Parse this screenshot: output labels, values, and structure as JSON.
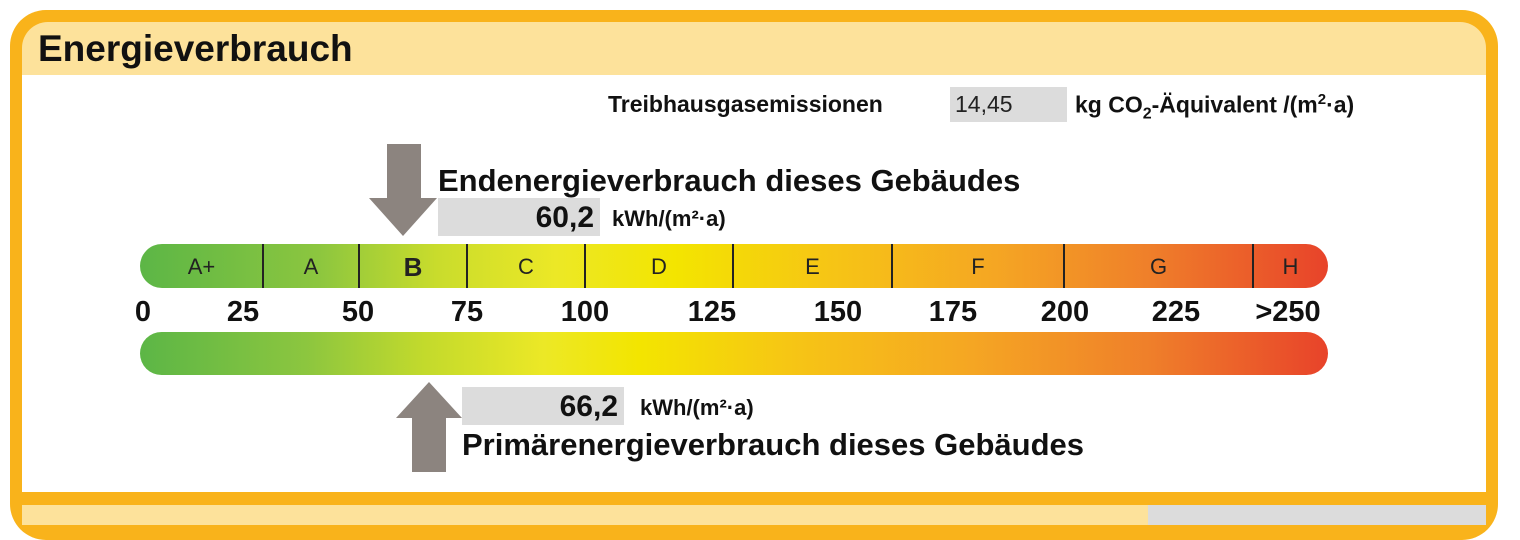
{
  "title": "Energieverbrauch",
  "ghg": {
    "label": "Treibhausgasemissionen",
    "value": "14,45",
    "unit_pre": "kg CO",
    "unit_sub": "2",
    "unit_mid": "-Äquivalent /(m",
    "unit_sup": "2",
    "unit_post": "·a)"
  },
  "end_energy": {
    "title": "Endenergieverbrauch dieses Gebäudes",
    "value": "60,2",
    "numeric": 60.2,
    "unit": "kWh/(m²·a)"
  },
  "primary_energy": {
    "title": "Primärenergieverbrauch dieses Gebäudes",
    "value": "66,2",
    "numeric": 66.2,
    "unit": "kWh/(m²·a)"
  },
  "classes": [
    {
      "label": "A+",
      "from": 0,
      "to": 30
    },
    {
      "label": "A",
      "from": 30,
      "to": 50
    },
    {
      "label": "B",
      "from": 50,
      "to": 75,
      "active": true
    },
    {
      "label": "C",
      "from": 75,
      "to": 100
    },
    {
      "label": "D",
      "from": 100,
      "to": 130
    },
    {
      "label": "E",
      "from": 130,
      "to": 160
    },
    {
      "label": "F",
      "from": 160,
      "to": 200
    },
    {
      "label": "G",
      "from": 200,
      "to": 250
    },
    {
      "label": "H",
      "from": 250,
      "to": 275
    }
  ],
  "scale_ticks": [
    "0",
    "25",
    "50",
    "75",
    "100",
    "125",
    "150",
    "175",
    "200",
    "225",
    ">250"
  ],
  "colors": {
    "frame": "#f9b31b",
    "header": "#fde29b",
    "arrow": "#8c847f",
    "value_box": "#dcdcdc"
  }
}
